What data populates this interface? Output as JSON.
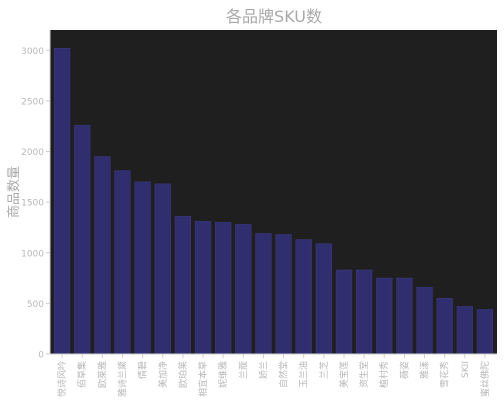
{
  "chart_data": {
    "type": "bar",
    "title": "各品牌SKU数",
    "xlabel": "",
    "ylabel": "商品数量",
    "ylim": [
      0,
      3200
    ],
    "yticks": [
      0,
      500,
      1000,
      1500,
      2000,
      2500,
      3000
    ],
    "grid": false,
    "categories": [
      "悦诗风吟",
      "佰草集",
      "欧莱雅",
      "雅诗兰黛",
      "倩碧",
      "美加净",
      "欧珀莱",
      "相宜本草",
      "妮维雅",
      "兰蔻",
      "娇兰",
      "自然堂",
      "玉兰油",
      "兰芝",
      "美宝莲",
      "资生堂",
      "植村秀",
      "薇姿",
      "雅漾",
      "雪花秀",
      "SKII",
      "蜜丝佛陀"
    ],
    "values": [
      3020,
      2260,
      1950,
      1810,
      1700,
      1680,
      1360,
      1310,
      1300,
      1280,
      1190,
      1180,
      1130,
      1090,
      830,
      830,
      750,
      750,
      660,
      550,
      470,
      440
    ]
  },
  "colors": {
    "plot_background": "#1f1f1f",
    "bar": "#302e6e",
    "bar_edge": "#3d3a86",
    "text": "#b8b8b8",
    "title": "#a9a9a9",
    "axis": "#cfcfcf"
  }
}
